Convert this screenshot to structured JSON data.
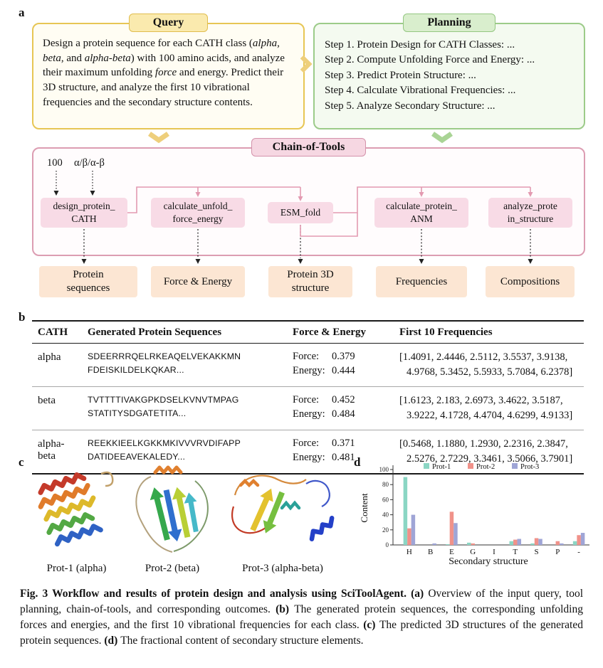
{
  "panel_labels": {
    "a": "a",
    "b": "b",
    "c": "c",
    "d": "d"
  },
  "colors": {
    "query_accent": "#e7c654",
    "planning_accent": "#9ccb89",
    "tools_accent": "#dc9db2",
    "tool_fill": "#f8dbe6",
    "output_fill": "#fce6d3"
  },
  "query": {
    "title": "Query",
    "s0": "Design a protein sequence for each CATH class (",
    "s1": "alpha",
    "s2": ", ",
    "s3": "beta",
    "s4": ", and ",
    "s5": "alpha-beta",
    "s6": ") with 100 amino acids, and analyze their maximum unfolding ",
    "s7": "force",
    "s8": " and energy. Predict their 3D structure, and analyze the first 10 vibrational frequencies and the secondary structure contents."
  },
  "planning": {
    "title": "Planning",
    "steps": [
      "Step 1. Protein Design for CATH Classes: ...",
      "Step 2. Compute Unfolding Force and Energy: ...",
      "Step 3. Predict Protein Structure: ...",
      "Step 4. Calculate Vibrational Frequencies: ...",
      "Step 5. Analyze Secondary Structure: ..."
    ]
  },
  "chain": {
    "title": "Chain-of-Tools",
    "inputs": [
      "100",
      "α/β/α-β"
    ],
    "tools": [
      "design_protein_\nCATH",
      "calculate_unfold_\nforce_energy",
      "ESM_fold",
      "calculate_protein_\nANM",
      "analyze_prote\nin_structure"
    ],
    "outputs": [
      "Protein\nsequences",
      "Force & Energy",
      "Protein 3D\nstructure",
      "Frequencies",
      "Compositions"
    ]
  },
  "table": {
    "headers": [
      "CATH",
      "Generated Protein Sequences",
      "Force & Energy",
      "First 10 Frequencies"
    ],
    "force_label": "Force:",
    "energy_label": "Energy:",
    "rows": [
      {
        "cath": "alpha",
        "sequence": "SDEERRRQELRKEAQELVEKAKKMN\nFDEISKILDELKQKAR...",
        "force": "0.379",
        "energy": "0.444",
        "frequencies": "[1.4091, 2.4446, 2.5112, 3.5537, 3.9138, 4.9768, 5.3452, 5.5933, 5.7084, 6.2378]"
      },
      {
        "cath": "beta",
        "sequence": "TVTTTTIVAKGPKDSELKVNVTMPAG\nSTATITYSDGATETITA...",
        "force": "0.452",
        "energy": "0.484",
        "frequencies": "[1.6123, 2.183, 2.6973, 3.4622, 3.5187, 3.9222, 4.1728, 4.4704, 4.6299, 4.9133]"
      },
      {
        "cath": "alpha-beta",
        "sequence": "REEKKIEELKGKKMKIVVVRVDIFAPP\nDATIDEEAVEKALEDY...",
        "force": "0.371",
        "energy": "0.481",
        "frequencies": "[0.5468, 1.1880, 1.2930, 2.2316, 2.3847, 2.5276, 2.7229, 3.3461, 3.5066, 3.7901]"
      }
    ]
  },
  "proteins": {
    "labels": [
      "Prot-1 (alpha)",
      "Prot-2 (beta)",
      "Prot-3 (alpha-beta)"
    ]
  },
  "chart_data": {
    "type": "bar",
    "title": "",
    "xlabel": "Secondary structure",
    "ylabel": "Content",
    "ylim": [
      0,
      100
    ],
    "yticks": [
      0,
      20,
      40,
      60,
      80,
      100
    ],
    "grid": false,
    "legend_position": "top",
    "categories": [
      "H",
      "B",
      "E",
      "G",
      "I",
      "T",
      "S",
      "P",
      "-"
    ],
    "series": [
      {
        "name": "Prot-1",
        "color": "#8bd6c4",
        "values": [
          90,
          0,
          1,
          3,
          0,
          5,
          2,
          0,
          5
        ]
      },
      {
        "name": "Prot-2",
        "color": "#f0928a",
        "values": [
          22,
          0,
          44,
          2,
          0,
          7,
          9,
          5,
          13
        ]
      },
      {
        "name": "Prot-3",
        "color": "#9fa5d6",
        "values": [
          40,
          2,
          29,
          0,
          0,
          8,
          8,
          2,
          16
        ]
      }
    ]
  },
  "caption": {
    "fig_bold": "Fig. 3 Workflow and results of protein design and analysis using SciToolAgent. ",
    "a_bold": "(a) ",
    "a_text": "Overview of the input query, tool planning, chain-of-tools, and corresponding outcomes. ",
    "b_bold": "(b) ",
    "b_text": "The generated protein sequences, the corresponding unfolding forces and energies, and the first 10 vibrational frequencies for each class. ",
    "c_bold": "(c) ",
    "c_text": "The predicted 3D structures of the generated protein sequences. ",
    "d_bold": "(d) ",
    "d_text": "The fractional content of secondary structure elements."
  }
}
